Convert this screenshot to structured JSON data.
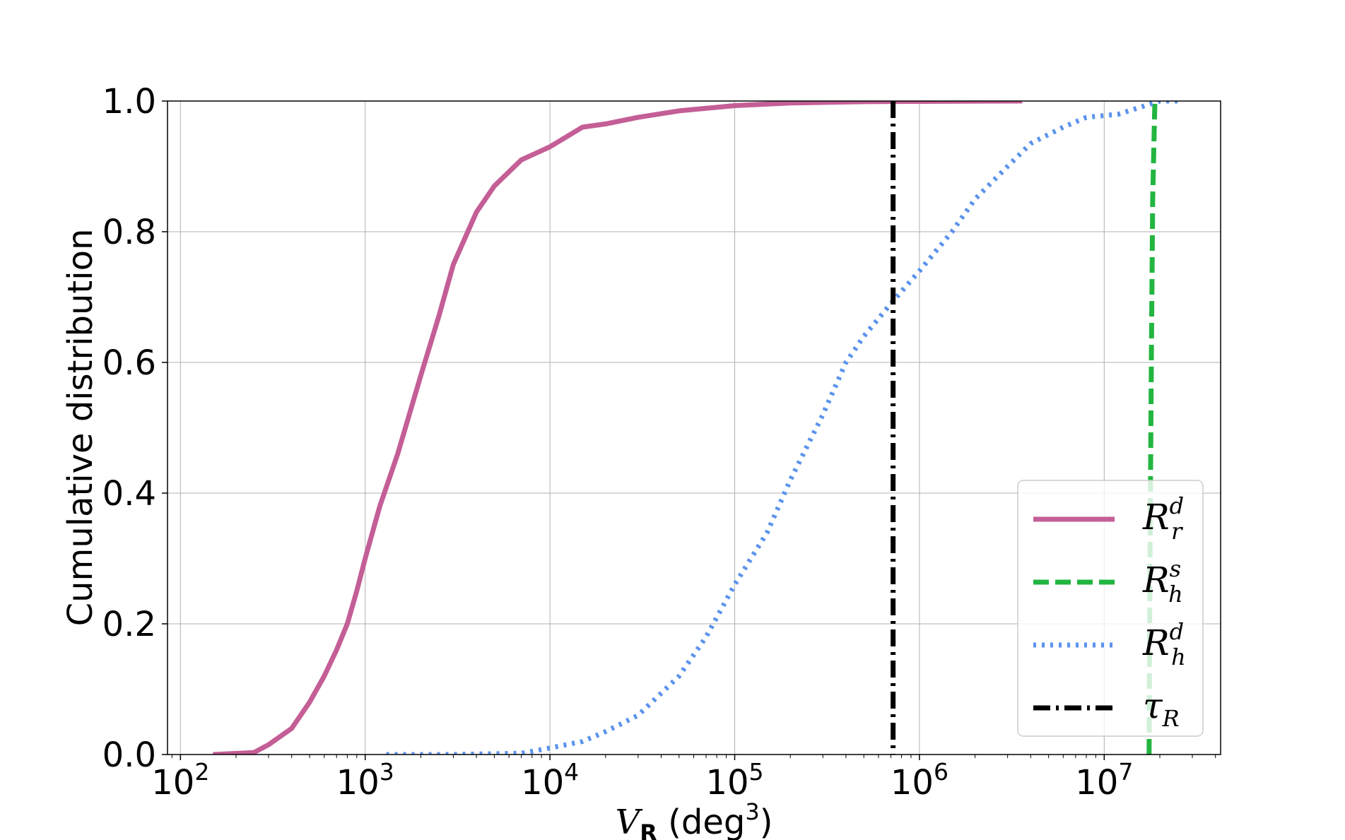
{
  "chart_data": {
    "type": "line",
    "xlabel": "V_R (deg^3)",
    "xlabel_parts": {
      "main": "V",
      "sub": "R",
      "unit_open": " (deg",
      "unit_sup": "3",
      "unit_close": ")"
    },
    "ylabel": "Cumulative distribution",
    "xscale": "log",
    "xlim_log10": [
      1.93,
      7.63
    ],
    "ylim": [
      0,
      1
    ],
    "grid": true,
    "legend_position": "lower-right",
    "x_ticks": [
      {
        "exp": 2,
        "base": "10",
        "sup": "2"
      },
      {
        "exp": 3,
        "base": "10",
        "sup": "3"
      },
      {
        "exp": 4,
        "base": "10",
        "sup": "4"
      },
      {
        "exp": 5,
        "base": "10",
        "sup": "5"
      },
      {
        "exp": 6,
        "base": "10",
        "sup": "6"
      },
      {
        "exp": 7,
        "base": "10",
        "sup": "7"
      }
    ],
    "y_ticks": [
      "0.0",
      "0.2",
      "0.4",
      "0.6",
      "0.8",
      "1.0"
    ],
    "y_tick_values": [
      0,
      0.2,
      0.4,
      0.6,
      0.8,
      1.0
    ],
    "series": [
      {
        "key": "rrd",
        "legend": {
          "base": "R",
          "sup": "d",
          "sub": "r"
        },
        "color": "#c45e96",
        "style": "solid",
        "points": [
          [
            150,
            0.0
          ],
          [
            250,
            0.003
          ],
          [
            300,
            0.015
          ],
          [
            400,
            0.04
          ],
          [
            500,
            0.08
          ],
          [
            600,
            0.12
          ],
          [
            700,
            0.16
          ],
          [
            800,
            0.2
          ],
          [
            900,
            0.25
          ],
          [
            1000,
            0.3
          ],
          [
            1200,
            0.38
          ],
          [
            1500,
            0.46
          ],
          [
            2000,
            0.58
          ],
          [
            2500,
            0.67
          ],
          [
            3000,
            0.75
          ],
          [
            4000,
            0.83
          ],
          [
            5000,
            0.87
          ],
          [
            7000,
            0.91
          ],
          [
            10000,
            0.93
          ],
          [
            15000,
            0.96
          ],
          [
            20000,
            0.965
          ],
          [
            30000,
            0.975
          ],
          [
            50000,
            0.985
          ],
          [
            100000,
            0.993
          ],
          [
            200000,
            0.997
          ],
          [
            500000,
            0.999
          ],
          [
            1000000,
            0.9995
          ],
          [
            3600000,
            1.0
          ]
        ]
      },
      {
        "key": "rhs",
        "legend": {
          "base": "R",
          "sup": "s",
          "sub": "h"
        },
        "color": "#22b540",
        "style": "dashed",
        "points": [
          [
            17500000,
            0.0
          ],
          [
            17700000,
            0.3
          ],
          [
            18000000,
            0.6
          ],
          [
            18300000,
            0.85
          ],
          [
            18800000,
            1.0
          ]
        ]
      },
      {
        "key": "rhd",
        "legend": {
          "base": "R",
          "sup": "d",
          "sub": "h"
        },
        "color": "#5b93ec",
        "style": "dotted",
        "points": [
          [
            1300,
            0.0
          ],
          [
            3000,
            0.0
          ],
          [
            7000,
            0.002
          ],
          [
            10000,
            0.01
          ],
          [
            15000,
            0.02
          ],
          [
            20000,
            0.035
          ],
          [
            30000,
            0.06
          ],
          [
            50000,
            0.12
          ],
          [
            70000,
            0.18
          ],
          [
            100000,
            0.26
          ],
          [
            150000,
            0.34
          ],
          [
            200000,
            0.42
          ],
          [
            300000,
            0.52
          ],
          [
            400000,
            0.6
          ],
          [
            500000,
            0.64
          ],
          [
            700000,
            0.69
          ],
          [
            1000000,
            0.74
          ],
          [
            1500000,
            0.8
          ],
          [
            2000000,
            0.85
          ],
          [
            3000000,
            0.9
          ],
          [
            4000000,
            0.935
          ],
          [
            6000000,
            0.96
          ],
          [
            8000000,
            0.975
          ],
          [
            12000000,
            0.98
          ],
          [
            20000000,
            1.0
          ],
          [
            25000000,
            1.0
          ]
        ]
      },
      {
        "key": "tau",
        "legend": {
          "base": "τ",
          "sup": "",
          "sub": "R"
        },
        "color": "#000000",
        "style": "dashdot",
        "vline_x": 720000
      }
    ]
  }
}
